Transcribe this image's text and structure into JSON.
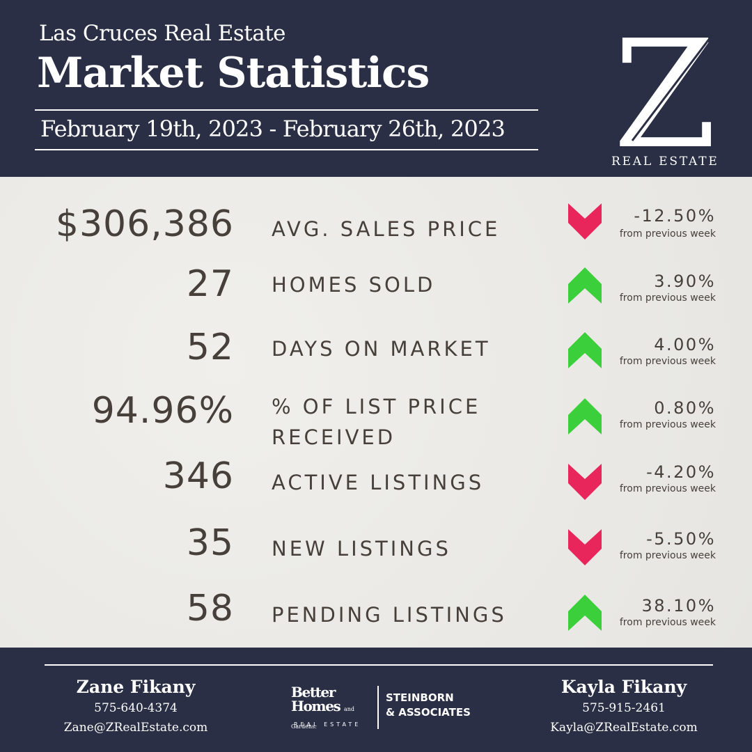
{
  "header": {
    "subtitle": "Las Cruces Real Estate",
    "title": "Market Statistics",
    "date_range": "February 19th, 2023 - February 26th, 2023",
    "logo_letter": "Z",
    "logo_caption": "REAL ESTATE"
  },
  "colors": {
    "navy": "#2a2f45",
    "text": "#473f3a",
    "up": "#3ccf3c",
    "down": "#e8265c"
  },
  "stats": [
    {
      "value": "$306,386",
      "label": "AVG. SALES PRICE",
      "direction": "down",
      "change": "-12.50%",
      "change_note": "from previous week"
    },
    {
      "value": "27",
      "label": "HOMES SOLD",
      "direction": "up",
      "change": "3.90%",
      "change_note": "from previous week"
    },
    {
      "value": "52",
      "label": "DAYS ON MARKET",
      "direction": "up",
      "change": "4.00%",
      "change_note": "from previous week"
    },
    {
      "value": "94.96%",
      "label_line1": "% OF LIST PRICE",
      "label_line2": "RECEIVED",
      "direction": "up",
      "change": "0.80%",
      "change_note": "from previous week"
    },
    {
      "value": "346",
      "label": "ACTIVE LISTINGS",
      "direction": "down",
      "change": "-4.20%",
      "change_note": "from previous week"
    },
    {
      "value": "35",
      "label": "NEW LISTINGS",
      "direction": "down",
      "change": "-5.50%",
      "change_note": "from previous week"
    },
    {
      "value": "58",
      "label": "PENDING LISTINGS",
      "direction": "up",
      "change": "38.10%",
      "change_note": "from previous week"
    }
  ],
  "footer": {
    "agent_left": {
      "name": "Zane Fikany",
      "phone": "575-640-4374",
      "email": "Zane@ZRealEstate.com"
    },
    "agent_right": {
      "name": "Kayla Fikany",
      "phone": "575-915-2461",
      "email": "Kayla@ZRealEstate.com"
    },
    "brand": {
      "line1": "Better",
      "line2": "Homes",
      "line3": "and Gardens.",
      "sub": "REAL ESTATE",
      "partner_line1": "STEINBORN",
      "partner_line2": "& ASSOCIATES"
    }
  }
}
